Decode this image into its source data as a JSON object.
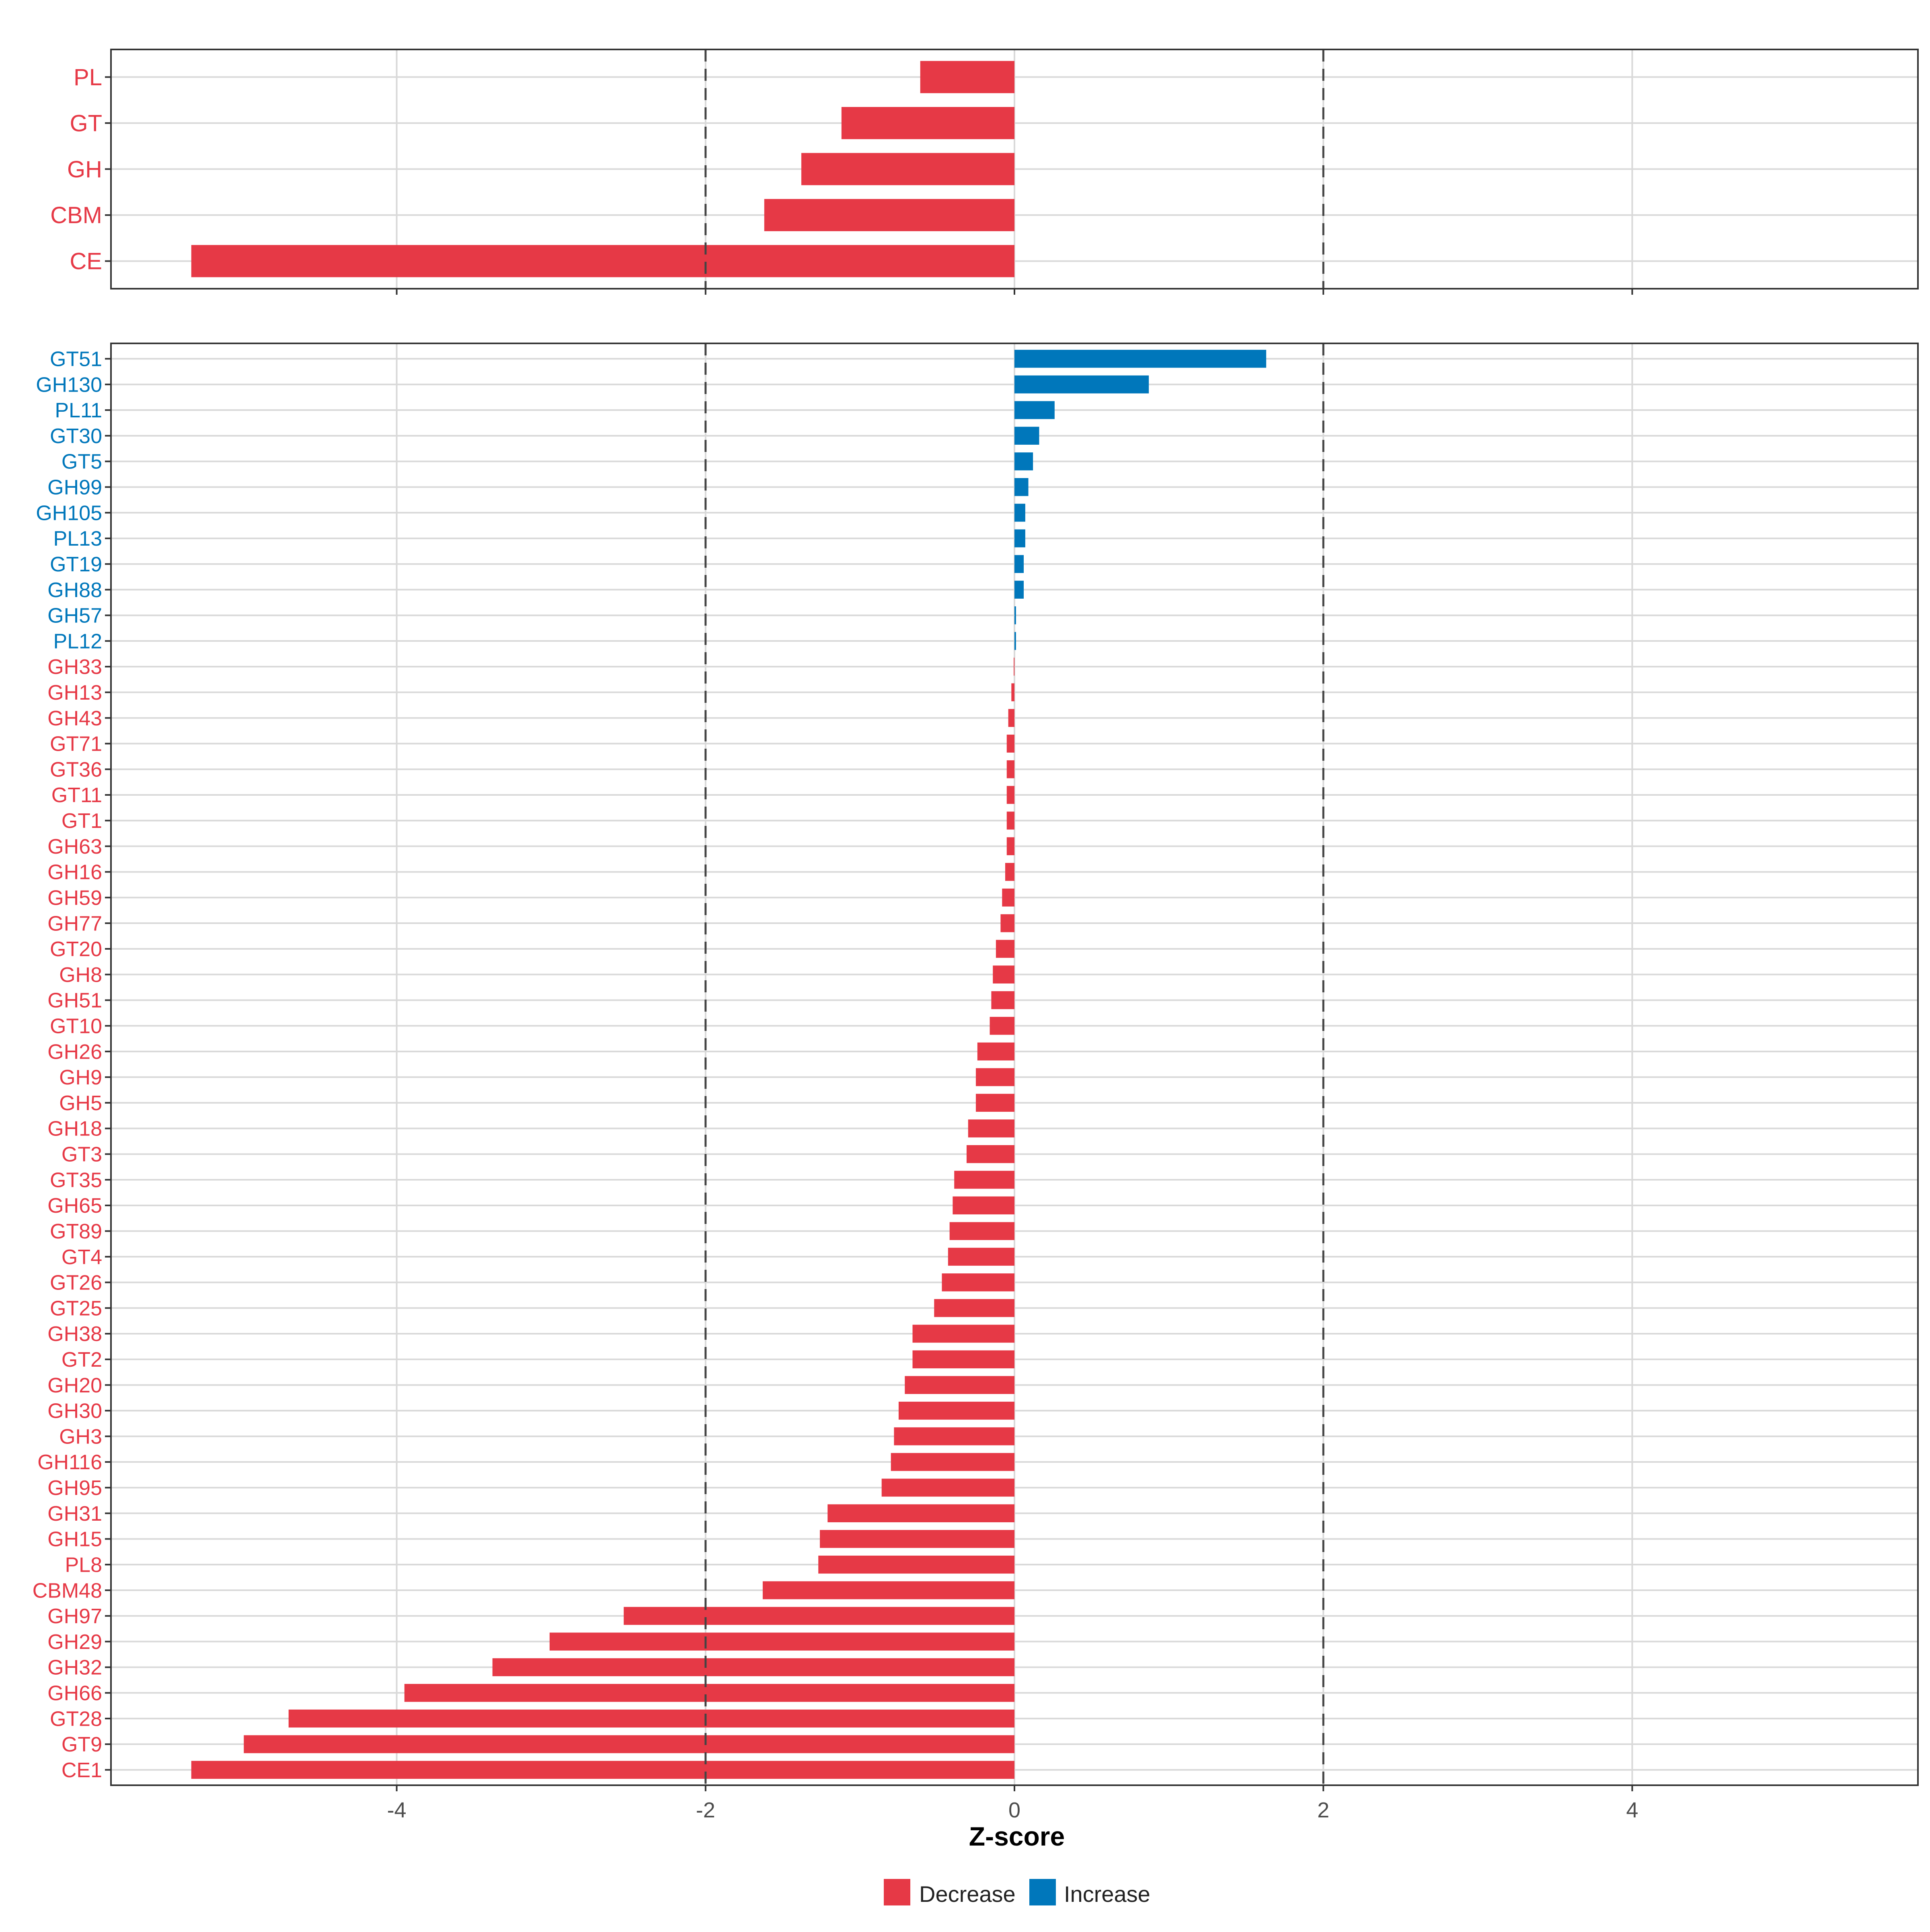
{
  "chart_data": [
    {
      "type": "bar",
      "orientation": "horizontal",
      "panel": "top",
      "categories": [
        "PL",
        "GT",
        "GH",
        "CBM",
        "CE"
      ],
      "values": [
        -0.61,
        -1.12,
        -1.38,
        -1.62,
        -5.33
      ],
      "xlim": [
        -5.85,
        5.85
      ],
      "x_ticks": [
        -4,
        -2,
        0,
        2,
        4
      ],
      "ref_lines": [
        -2,
        2
      ],
      "grid": true
    },
    {
      "type": "bar",
      "orientation": "horizontal",
      "panel": "bottom",
      "categories": [
        "GT51",
        "GH130",
        "PL11",
        "GT30",
        "GT5",
        "GH99",
        "GH105",
        "PL13",
        "GT19",
        "GH88",
        "GH57",
        "PL12",
        "GH33",
        "GH13",
        "GH43",
        "GT71",
        "GT36",
        "GT11",
        "GT1",
        "GH63",
        "GH16",
        "GH59",
        "GH77",
        "GT20",
        "GH8",
        "GH51",
        "GT10",
        "GH26",
        "GH9",
        "GH5",
        "GH18",
        "GT3",
        "GT35",
        "GH65",
        "GT89",
        "GT4",
        "GT26",
        "GT25",
        "GH38",
        "GT2",
        "GH20",
        "GH30",
        "GH3",
        "GH116",
        "GH95",
        "GH31",
        "GH15",
        "PL8",
        "CBM48",
        "GH97",
        "GH29",
        "GH32",
        "GH66",
        "GT28",
        "GT9",
        "CE1"
      ],
      "values": [
        1.63,
        0.87,
        0.26,
        0.16,
        0.12,
        0.09,
        0.07,
        0.07,
        0.06,
        0.06,
        0.01,
        0.01,
        -0.005,
        -0.02,
        -0.04,
        -0.05,
        -0.05,
        -0.05,
        -0.05,
        -0.05,
        -0.06,
        -0.08,
        -0.09,
        -0.12,
        -0.14,
        -0.15,
        -0.16,
        -0.24,
        -0.25,
        -0.25,
        -0.3,
        -0.31,
        -0.39,
        -0.4,
        -0.42,
        -0.43,
        -0.47,
        -0.52,
        -0.66,
        -0.66,
        -0.71,
        -0.75,
        -0.78,
        -0.8,
        -0.86,
        -1.21,
        -1.26,
        -1.27,
        -1.63,
        -2.53,
        -3.01,
        -3.38,
        -3.95,
        -4.7,
        -4.99,
        -5.33
      ],
      "xlim": [
        -5.85,
        5.85
      ],
      "x_ticks": [
        -4,
        -2,
        0,
        2,
        4
      ],
      "ref_lines": [
        -2,
        2
      ],
      "grid": true
    }
  ],
  "xlabel": "Z-score",
  "tick_labels": [
    "-4",
    "-2",
    "0",
    "2",
    "4"
  ],
  "legend": {
    "position": "bottom",
    "items": [
      {
        "label": "Decrease",
        "color": "#E63946"
      },
      {
        "label": "Increase",
        "color": "#0077BB"
      }
    ]
  },
  "colors": {
    "decrease": "#E63946",
    "increase": "#0077BB",
    "grid": "#D9D9D9",
    "ref_line": "#444444",
    "frame": "#333333"
  }
}
